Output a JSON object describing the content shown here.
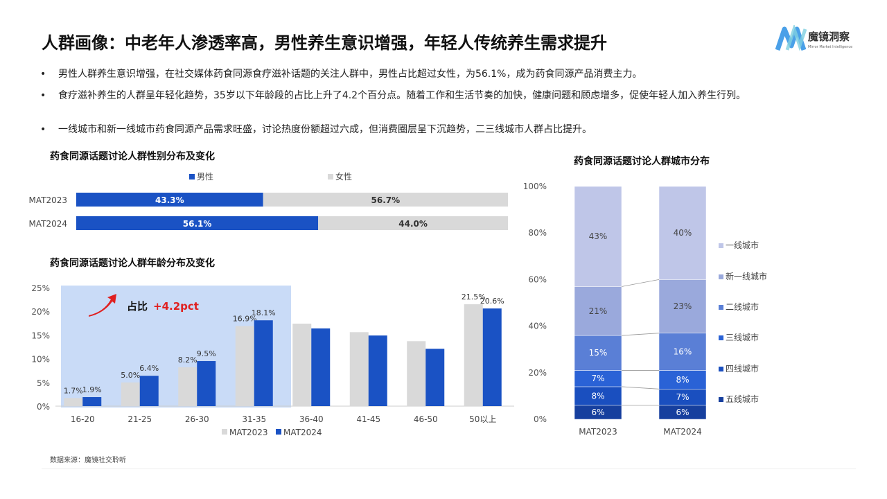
{
  "header": {
    "title": "人群画像：中老年人渗透率高，男性养生意识增强，年轻人传统养生需求提升",
    "logo_text": "魔镜洞察",
    "logo_subtext": "Mirror Market Intelligence"
  },
  "bullets": [
    "男性人群养生意识增强，在社交媒体药食同源食疗滋补话题的关注人群中，男性占比超过女性，为56.1%，成为药食同源产品消费主力。",
    "食疗滋补养生的人群呈年轻化趋势，35岁以下年龄段的占比上升了4.2个百分点。随着工作和生活节奏的加快，健康问题和顾虑增多，促使年轻人加入养生行列。",
    "一线城市和新一线城市药食同源产品需求旺盛，讨论热度份额超过六成，但消费圈层呈下沉趋势，二三线城市人群占比提升。"
  ],
  "bullet_marker": "•",
  "source": "数据来源：魔镜社交聆听",
  "chart_data": [
    {
      "type": "bar",
      "orientation": "horizontal",
      "stacked": true,
      "title": "药食同源话题讨论人群性别分布及变化",
      "categories": [
        "MAT2023",
        "MAT2024"
      ],
      "series": [
        {
          "name": "男性",
          "values": [
            43.3,
            56.1
          ],
          "labels": [
            "43.3%",
            "56.1%"
          ],
          "color": "#1a52c4"
        },
        {
          "name": "女性",
          "values": [
            56.7,
            44.0
          ],
          "labels": [
            "56.7%",
            "44.0%"
          ],
          "color": "#d9d9d9"
        }
      ],
      "legend": "top"
    },
    {
      "type": "bar",
      "title": "药食同源话题讨论人群年龄分布及变化",
      "categories": [
        "16-20",
        "21-25",
        "26-30",
        "31-35",
        "36-40",
        "41-45",
        "46-50",
        "50以上"
      ],
      "series": [
        {
          "name": "MAT2023",
          "values": [
            1.7,
            5.0,
            8.2,
            16.9,
            17.4,
            15.6,
            13.7,
            21.5
          ],
          "labels": [
            "1.7%",
            "5.0%",
            "8.2%",
            "16.9%",
            "",
            "",
            "",
            "21.5%"
          ],
          "color": "#d9d9d9"
        },
        {
          "name": "MAT2024",
          "values": [
            1.9,
            6.4,
            9.5,
            18.1,
            16.4,
            14.9,
            12.1,
            20.6
          ],
          "labels": [
            "1.9%",
            "6.4%",
            "9.5%",
            "18.1%",
            "",
            "",
            "",
            "20.6%"
          ],
          "color": "#1a52c4"
        }
      ],
      "yticks": [
        "0%",
        "5%",
        "10%",
        "15%",
        "20%",
        "25%"
      ],
      "ylim": [
        0,
        25
      ],
      "legend": "bottom",
      "annotation": {
        "label": "占比",
        "value": "+4.2pct",
        "highlight": "16-20 to 31-35",
        "highlight_color": "#c9dbf7",
        "value_color": "#e02020"
      }
    },
    {
      "type": "bar",
      "stacked": true,
      "percent": true,
      "title": "药食同源话题讨论人群城市分布",
      "categories": [
        "MAT2023",
        "MAT2024"
      ],
      "series": [
        {
          "name": "五线城市",
          "values": [
            6,
            6
          ],
          "color": "#163f9e"
        },
        {
          "name": "四线城市",
          "values": [
            8,
            7
          ],
          "color": "#1a4fbf"
        },
        {
          "name": "三线城市",
          "values": [
            7,
            8
          ],
          "color": "#2a62d6"
        },
        {
          "name": "二线城市",
          "values": [
            15,
            16
          ],
          "color": "#5a7fd6"
        },
        {
          "name": "新一线城市",
          "values": [
            21,
            23
          ],
          "color": "#9aa9dc"
        },
        {
          "name": "一线城市",
          "values": [
            43,
            40
          ],
          "color": "#bfc6e8"
        }
      ],
      "yticks": [
        "0%",
        "20%",
        "40%",
        "60%",
        "80%",
        "100%"
      ],
      "ylim": [
        0,
        100
      ],
      "legend": "right"
    }
  ]
}
